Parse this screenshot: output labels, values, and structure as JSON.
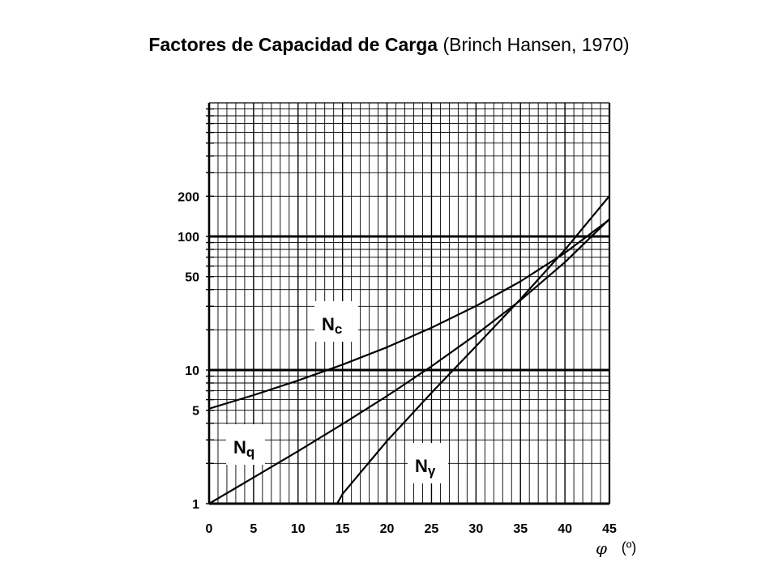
{
  "title": {
    "main": "Factores de Capacidad de Carga",
    "sub": "(Brinch Hansen, 1970)"
  },
  "chart_data": {
    "type": "line",
    "title": "Factores de Capacidad de Carga (Brinch Hansen, 1970)",
    "x_axis": {
      "symbol": "φ",
      "unit": "(º)",
      "range": [
        0,
        45
      ],
      "ticks": [
        0,
        5,
        10,
        15,
        20,
        25,
        30,
        35,
        40,
        45
      ],
      "tick_labels": [
        "0",
        "5",
        "10",
        "15",
        "20",
        "25",
        "30",
        "35",
        "40",
        "45"
      ]
    },
    "y_axis": {
      "scale": "log",
      "range": [
        1,
        1000
      ],
      "ticks": [
        1,
        5,
        10,
        50,
        100,
        200
      ],
      "tick_labels": [
        "1",
        "5",
        "10",
        "50",
        "100",
        "200"
      ]
    },
    "grid": true,
    "series": [
      {
        "name": "Nc",
        "label_main": "N",
        "label_sub": "c",
        "x": [
          0,
          5,
          10,
          15,
          20,
          25,
          30,
          35,
          40,
          45
        ],
        "values": [
          5.14,
          6.49,
          8.35,
          10.98,
          14.83,
          20.72,
          30.14,
          46.12,
          75.31,
          133.87
        ]
      },
      {
        "name": "Nq",
        "label_main": "N",
        "label_sub": "q",
        "x": [
          0,
          5,
          10,
          15,
          20,
          25,
          30,
          35,
          40,
          45
        ],
        "values": [
          1.0,
          1.57,
          2.47,
          3.94,
          6.4,
          10.66,
          18.4,
          33.3,
          64.2,
          134.87
        ]
      },
      {
        "name": "Nγ",
        "label_main": "N",
        "label_sub": "γ",
        "x": [
          14,
          15,
          20,
          25,
          30,
          35,
          40,
          45
        ],
        "values": [
          0.9,
          1.18,
          2.95,
          6.76,
          15.07,
          33.92,
          79.54,
          200.81
        ]
      }
    ]
  }
}
